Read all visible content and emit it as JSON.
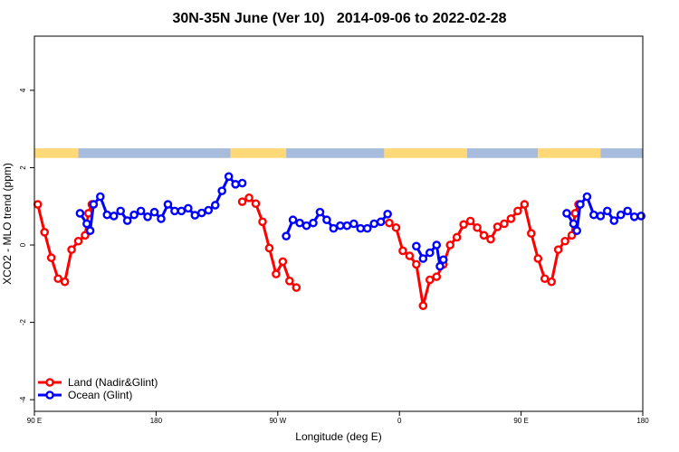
{
  "chart_data": {
    "type": "line",
    "title": "30N-35N June (Ver 10)   2014-09-06 to 2022-02-28",
    "xlabel": "Longitude (deg E)",
    "ylabel": "XCO2 - MLO trend (ppm)",
    "xlim": [
      90,
      450
    ],
    "ylim": [
      -4.3,
      5.4
    ],
    "xticks": [
      {
        "value": 90,
        "label": "90 E"
      },
      {
        "value": 162,
        "label": "180"
      },
      {
        "value": 234,
        "label": "90 W"
      },
      {
        "value": 306,
        "label": "0"
      },
      {
        "value": 378,
        "label": "90 E"
      },
      {
        "value": 450,
        "label": "180"
      }
    ],
    "yticks": [
      {
        "value": -4,
        "label": "-4"
      },
      {
        "value": -2,
        "label": "-2"
      },
      {
        "value": 0,
        "label": "0"
      },
      {
        "value": 2,
        "label": "2"
      },
      {
        "value": 4,
        "label": "4"
      }
    ],
    "land_ocean_band": {
      "y_range": [
        2.25,
        2.5
      ],
      "land_color": "#FFD878",
      "ocean_color": "#A7BCDC",
      "segments": [
        {
          "type": "land",
          "x": [
            90,
            116
          ]
        },
        {
          "type": "ocean",
          "x": [
            116,
            206
          ]
        },
        {
          "type": "land",
          "x": [
            206,
            239
          ]
        },
        {
          "type": "ocean",
          "x": [
            239,
            297
          ]
        },
        {
          "type": "land",
          "x": [
            297,
            346
          ]
        },
        {
          "type": "ocean",
          "x": [
            346,
            388
          ]
        },
        {
          "type": "land",
          "x": [
            388,
            425
          ]
        },
        {
          "type": "ocean",
          "x": [
            425,
            450
          ]
        }
      ]
    },
    "legend": {
      "position": "bottom-left",
      "entries": [
        {
          "label": "Land (Nadir&Glint)",
          "color": "#FF0000"
        },
        {
          "label": "Ocean (Glint)",
          "color": "#0000FF"
        }
      ]
    },
    "series": [
      {
        "name": "Land (Nadir&Glint)",
        "color": "#FF0000",
        "segments": [
          [
            [
              92,
              1.05
            ],
            [
              96,
              0.33
            ],
            [
              100,
              -0.33
            ],
            [
              104,
              -0.87
            ],
            [
              108,
              -0.95
            ],
            [
              112,
              -0.12
            ],
            [
              116,
              0.1
            ],
            [
              120,
              0.25
            ],
            [
              122,
              0.82
            ],
            [
              124,
              1.05
            ]
          ],
          [
            [
              213,
              1.12
            ],
            [
              217,
              1.22
            ],
            [
              221,
              1.07
            ],
            [
              225,
              0.6
            ],
            [
              229,
              -0.08
            ],
            [
              233,
              -0.75
            ],
            [
              237,
              -0.43
            ],
            [
              241,
              -0.93
            ],
            [
              245,
              -1.1
            ]
          ],
          [
            [
              300,
              0.57
            ],
            [
              304,
              0.45
            ],
            [
              308,
              -0.15
            ],
            [
              312,
              -0.28
            ],
            [
              316,
              -0.5
            ],
            [
              320,
              -1.57
            ],
            [
              324,
              -0.9
            ],
            [
              328,
              -0.82
            ],
            [
              332,
              -0.5
            ],
            [
              336,
              0.0
            ],
            [
              340,
              0.2
            ],
            [
              344,
              0.53
            ],
            [
              348,
              0.62
            ],
            [
              352,
              0.45
            ],
            [
              356,
              0.25
            ],
            [
              360,
              0.15
            ],
            [
              364,
              0.47
            ],
            [
              368,
              0.55
            ],
            [
              372,
              0.68
            ],
            [
              376,
              0.88
            ],
            [
              380,
              1.05
            ],
            [
              384,
              0.3
            ],
            [
              388,
              -0.35
            ],
            [
              392,
              -0.87
            ],
            [
              396,
              -0.95
            ],
            [
              400,
              -0.12
            ],
            [
              404,
              0.1
            ],
            [
              408,
              0.25
            ],
            [
              410,
              0.82
            ],
            [
              412,
              1.05
            ]
          ]
        ]
      },
      {
        "name": "Ocean (Glint)",
        "color": "#0000FF",
        "segments": [
          [
            [
              117,
              0.82
            ],
            [
              121,
              0.55
            ],
            [
              123,
              0.37
            ],
            [
              125,
              1.05
            ],
            [
              129,
              1.25
            ],
            [
              133,
              0.78
            ],
            [
              137,
              0.75
            ],
            [
              141,
              0.88
            ],
            [
              145,
              0.63
            ],
            [
              149,
              0.78
            ],
            [
              153,
              0.88
            ],
            [
              157,
              0.73
            ],
            [
              161,
              0.85
            ],
            [
              165,
              0.68
            ],
            [
              169,
              1.05
            ],
            [
              173,
              0.88
            ],
            [
              177,
              0.88
            ],
            [
              181,
              0.95
            ],
            [
              185,
              0.77
            ],
            [
              189,
              0.83
            ],
            [
              193,
              0.9
            ],
            [
              197,
              1.03
            ],
            [
              201,
              1.4
            ],
            [
              205,
              1.77
            ],
            [
              209,
              1.57
            ],
            [
              213,
              1.6
            ]
          ],
          [
            [
              239,
              0.23
            ],
            [
              243,
              0.65
            ],
            [
              247,
              0.57
            ],
            [
              251,
              0.5
            ],
            [
              255,
              0.57
            ],
            [
              259,
              0.85
            ],
            [
              263,
              0.65
            ],
            [
              267,
              0.43
            ],
            [
              271,
              0.5
            ],
            [
              275,
              0.5
            ],
            [
              279,
              0.55
            ],
            [
              283,
              0.43
            ],
            [
              287,
              0.43
            ],
            [
              291,
              0.55
            ],
            [
              295,
              0.6
            ],
            [
              299,
              0.8
            ]
          ],
          [
            [
              316,
              -0.03
            ],
            [
              320,
              -0.35
            ],
            [
              324,
              -0.2
            ],
            [
              328,
              0.0
            ],
            [
              330,
              -0.55
            ],
            [
              332,
              -0.38
            ]
          ],
          [
            [
              405,
              0.82
            ],
            [
              409,
              0.55
            ],
            [
              411,
              0.37
            ],
            [
              413,
              1.05
            ],
            [
              417,
              1.25
            ],
            [
              421,
              0.78
            ],
            [
              425,
              0.75
            ],
            [
              429,
              0.88
            ],
            [
              433,
              0.63
            ],
            [
              437,
              0.78
            ],
            [
              441,
              0.88
            ],
            [
              445,
              0.73
            ],
            [
              449,
              0.75
            ]
          ]
        ]
      }
    ]
  }
}
